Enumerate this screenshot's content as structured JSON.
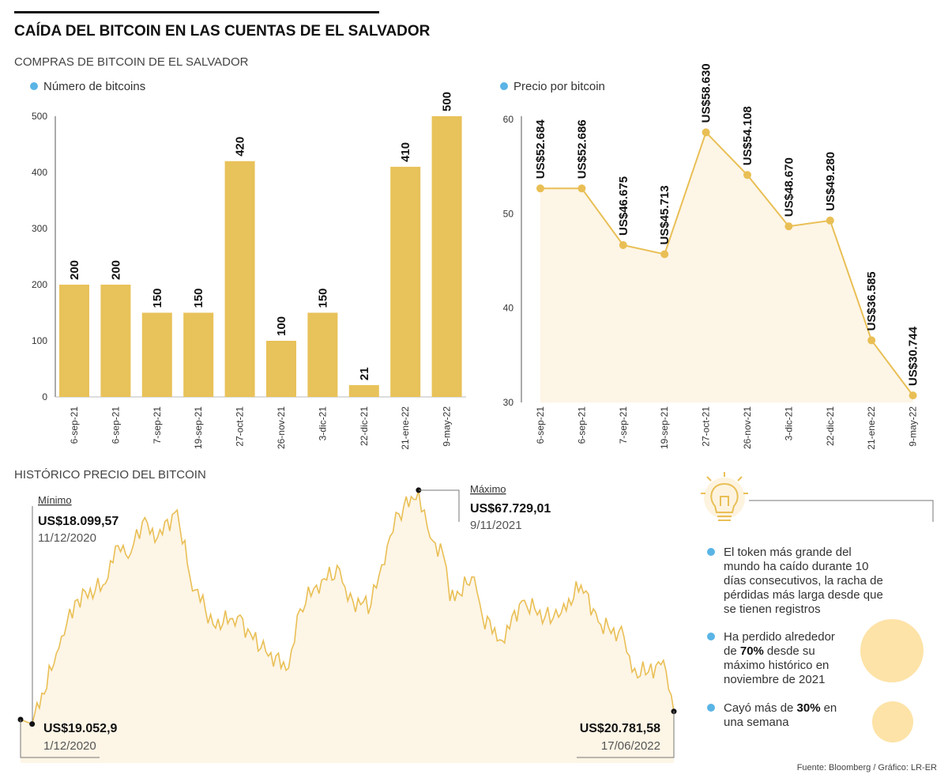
{
  "header": {
    "title": "CAÍDA DEL BITCOIN EN LAS CUENTAS DE EL SALVADOR",
    "subtitle": "COMPRAS DE BITCOIN DE EL SALVADOR"
  },
  "colors": {
    "bar": "#e8c25a",
    "line": "#e9bf55",
    "area": "#fdf5e6",
    "legend_dot": "#5ab4e6",
    "circle": "#fde3a7"
  },
  "chart_data": [
    {
      "type": "bar",
      "legend": "Número de bitcoins",
      "categories": [
        "6-sep-21",
        "6-sep-21",
        "7-sep-21",
        "19-sep-21",
        "27-oct-21",
        "26-nov-21",
        "3-dic-21",
        "22-dic-21",
        "21-ene-22",
        "9-may-22"
      ],
      "values": [
        200,
        200,
        150,
        150,
        420,
        100,
        150,
        21,
        410,
        500
      ],
      "value_labels": [
        "200",
        "200",
        "150",
        "150",
        "420",
        "100",
        "150",
        "21",
        "410",
        "500"
      ],
      "yticks": [
        "0",
        "100",
        "200",
        "300",
        "400",
        "500"
      ],
      "ylim": [
        0,
        500
      ],
      "grid": false
    },
    {
      "type": "line",
      "legend": "Precio por bitcoin",
      "categories": [
        "6-sep-21",
        "6-sep-21",
        "7-sep-21",
        "19-sep-21",
        "27-oct-21",
        "26-nov-21",
        "3-dic-21",
        "22-dic-21",
        "21-ene-22",
        "9-may-22"
      ],
      "values": [
        52.684,
        52.686,
        46.675,
        45.713,
        58.63,
        54.108,
        48.67,
        49.28,
        36.585,
        30.744
      ],
      "value_labels": [
        "US$52.684",
        "US$52.686",
        "US$46.675",
        "US$45.713",
        "US$58.630",
        "US$54.108",
        "US$48.670",
        "US$49.280",
        "US$36.585",
        "US$30.744"
      ],
      "yticks": [
        "30",
        "40",
        "50",
        "60"
      ],
      "ylim": [
        30,
        60
      ],
      "grid": false,
      "area_fill": true
    },
    {
      "type": "area",
      "title": "HISTÓRICO PRECIO DEL BITCOIN",
      "x": [
        "2020-12-01",
        "2020-12-11",
        "2021-01-03",
        "2021-01-17",
        "2021-02-10",
        "2021-02-23",
        "2021-03-06",
        "2021-03-16",
        "2021-03-29",
        "2021-04-15",
        "2021-04-26",
        "2021-05-16",
        "2021-06-06",
        "2021-06-26",
        "2021-07-20",
        "2021-07-30",
        "2021-08-13",
        "2021-09-02",
        "2021-09-09",
        "2021-09-29",
        "2021-10-13",
        "2021-10-23",
        "2021-11-09",
        "2021-11-19",
        "2021-11-30",
        "2021-12-06",
        "2021-12-27",
        "2022-01-03",
        "2022-01-20",
        "2022-02-06",
        "2022-02-26",
        "2022-03-12",
        "2022-03-29",
        "2022-04-15",
        "2022-05-05",
        "2022-05-12",
        "2022-05-26",
        "2022-06-08",
        "2022-06-17"
      ],
      "y": [
        19052.9,
        18099.57,
        34150,
        44220,
        47580,
        55970,
        54290,
        61000,
        57650,
        63520,
        49260,
        39190,
        40870,
        34150,
        29960,
        42540,
        47580,
        50930,
        44220,
        43380,
        55970,
        62680,
        67729.01,
        57650,
        54290,
        44220,
        49260,
        40870,
        35830,
        44220,
        40870,
        41710,
        47580,
        39190,
        36670,
        29120,
        29120,
        31640,
        20781.58
      ],
      "annotations": {
        "min": {
          "label": "Mínimo",
          "value": "US$18.099,57",
          "date": "11/12/2020"
        },
        "max": {
          "label": "Máximo",
          "value": "US$67.729,01",
          "date": "9/11/2021"
        },
        "start": {
          "value": "US$19.052,9",
          "date": "1/12/2020"
        },
        "end": {
          "value": "US$20.781,58",
          "date": "17/06/2022"
        }
      }
    }
  ],
  "notes": {
    "icon": "lightbulb-icon",
    "items": [
      {
        "lines": [
          "El token más grande del",
          "mundo ha caído durante 10",
          "días consecutivos, la racha de",
          "pérdidas más larga desde que",
          "se tienen registros"
        ]
      },
      {
        "lines": [
          "Ha perdido alrededor",
          "desde su",
          "máximo histórico en",
          "noviembre de 2021"
        ],
        "pre": "de ",
        "bold": "70%"
      },
      {
        "lines": [
          "Cayó más de ",
          "en",
          "una semana"
        ],
        "bold": "30%"
      }
    ]
  },
  "source": "Fuente: Bloomberg / Gráfico: LR-ER"
}
